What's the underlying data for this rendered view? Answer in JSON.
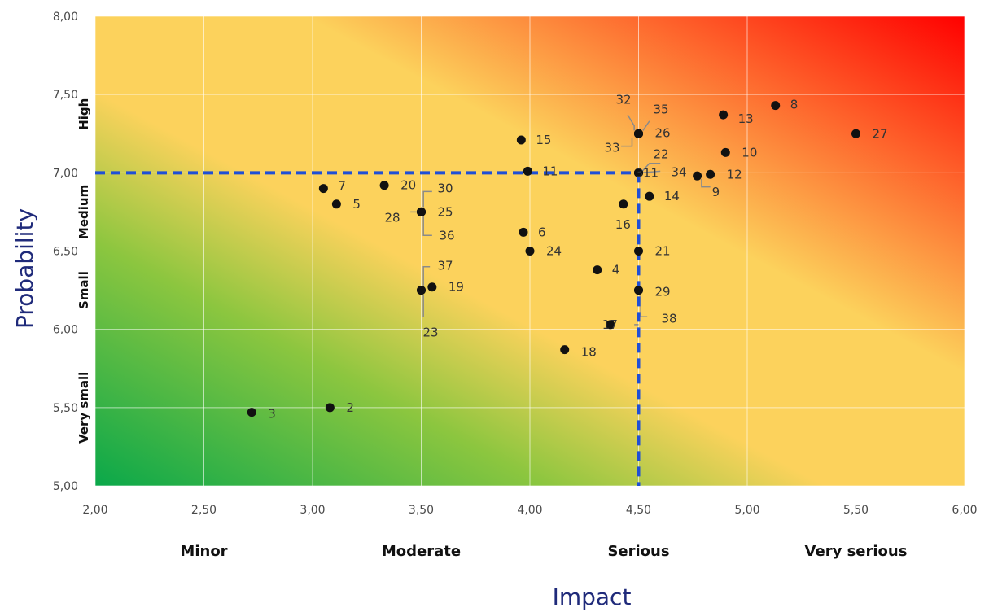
{
  "chart_data": {
    "type": "scatter",
    "title": "",
    "xlabel": "Impact",
    "ylabel": "Probability",
    "xlim": [
      2.0,
      6.0
    ],
    "ylim": [
      5.0,
      8.0
    ],
    "x_ticks": [
      "2,00",
      "2,50",
      "3,00",
      "3,50",
      "4,00",
      "4,50",
      "5,00",
      "5,50",
      "6,00"
    ],
    "y_ticks": [
      "5,00",
      "5,50",
      "6,00",
      "6,50",
      "7,00",
      "7,50",
      "8,00"
    ],
    "x_categories": [
      "Minor",
      "Moderate",
      "Serious",
      "Very serious"
    ],
    "y_categories": [
      "Very small",
      "Small",
      "Medium",
      "High"
    ],
    "threshold": {
      "x": 4.5,
      "y": 7.0,
      "color": "#1f4fd6"
    },
    "grid": true,
    "gradient_colors": {
      "low": "#0aa84a",
      "mid_green": "#8cc63f",
      "mid": "#fcd25c",
      "high": "#ff0000"
    },
    "points": [
      {
        "label": "1",
        "x": 4.5,
        "y": 7.0
      },
      {
        "label": "2",
        "x": 3.08,
        "y": 5.5
      },
      {
        "label": "3",
        "x": 2.72,
        "y": 5.47
      },
      {
        "label": "4",
        "x": 4.31,
        "y": 6.38
      },
      {
        "label": "5",
        "x": 3.11,
        "y": 6.8
      },
      {
        "label": "6",
        "x": 3.97,
        "y": 6.62
      },
      {
        "label": "7",
        "x": 3.05,
        "y": 6.9
      },
      {
        "label": "8",
        "x": 5.13,
        "y": 7.43
      },
      {
        "label": "9",
        "x": 4.77,
        "y": 6.98
      },
      {
        "label": "10",
        "x": 4.9,
        "y": 7.13
      },
      {
        "label": "11",
        "x": 3.99,
        "y": 7.01
      },
      {
        "label": "12",
        "x": 4.83,
        "y": 6.99
      },
      {
        "label": "13",
        "x": 4.89,
        "y": 7.37
      },
      {
        "label": "14",
        "x": 4.55,
        "y": 6.85
      },
      {
        "label": "15",
        "x": 3.96,
        "y": 7.21
      },
      {
        "label": "16",
        "x": 4.43,
        "y": 6.8
      },
      {
        "label": "17",
        "x": 4.37,
        "y": 6.03
      },
      {
        "label": "18",
        "x": 4.16,
        "y": 5.87
      },
      {
        "label": "19",
        "x": 3.55,
        "y": 6.27
      },
      {
        "label": "20",
        "x": 3.33,
        "y": 6.92
      },
      {
        "label": "21",
        "x": 4.5,
        "y": 6.5
      },
      {
        "label": "22",
        "x": 4.5,
        "y": 7.0
      },
      {
        "label": "23",
        "x": 3.5,
        "y": 6.25
      },
      {
        "label": "24",
        "x": 4.0,
        "y": 6.5
      },
      {
        "label": "25",
        "x": 3.5,
        "y": 6.75
      },
      {
        "label": "26",
        "x": 4.5,
        "y": 7.25
      },
      {
        "label": "27",
        "x": 5.5,
        "y": 7.25
      },
      {
        "label": "28",
        "x": 3.5,
        "y": 6.75
      },
      {
        "label": "29",
        "x": 4.5,
        "y": 6.25
      },
      {
        "label": "30",
        "x": 3.5,
        "y": 6.75
      },
      {
        "label": "31",
        "x": 4.5,
        "y": 7.0
      },
      {
        "label": "32",
        "x": 4.5,
        "y": 7.25
      },
      {
        "label": "33",
        "x": 4.5,
        "y": 7.25
      },
      {
        "label": "34",
        "x": 4.5,
        "y": 7.0
      },
      {
        "label": "35",
        "x": 4.5,
        "y": 7.25
      },
      {
        "label": "36",
        "x": 3.5,
        "y": 6.75
      },
      {
        "label": "37",
        "x": 3.5,
        "y": 6.25
      },
      {
        "label": "38",
        "x": 4.5,
        "y": 6.25
      }
    ]
  }
}
